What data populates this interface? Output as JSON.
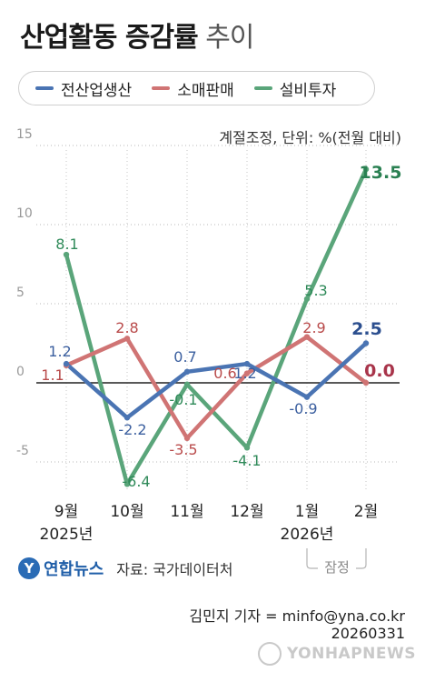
{
  "title": {
    "bold": "산업활동 증감률",
    "light": "추이"
  },
  "legend": [
    {
      "label": "전산업생산",
      "color": "#4a74b3"
    },
    {
      "label": "소매판매",
      "color": "#d07474"
    },
    {
      "label": "설비투자",
      "color": "#5aa57a"
    }
  ],
  "unit_note": "계절조정, 단위: %(전월 대비)",
  "chart_data": {
    "type": "line",
    "categories": [
      "9월",
      "10월",
      "11월",
      "12월",
      "1월",
      "2월"
    ],
    "year_labels": [
      "2025년",
      "2026년"
    ],
    "provisional_label": "잠정",
    "y_ticks": [
      "15",
      "10",
      "5",
      "0",
      "-5"
    ],
    "ylim": [
      -8.5,
      15
    ],
    "series": [
      {
        "name": "전산업생산",
        "color": "#4a74b3",
        "values": [
          1.2,
          -2.2,
          0.7,
          1.2,
          -0.9,
          2.5
        ],
        "labels": [
          "1.2",
          "-2.2",
          "0.7",
          "1.2",
          "-0.9",
          "2.5"
        ]
      },
      {
        "name": "소매판매",
        "color": "#d07474",
        "values": [
          1.1,
          2.8,
          -3.5,
          0.6,
          2.9,
          0.0
        ],
        "labels": [
          "1.1",
          "2.8",
          "-3.5",
          "0.6",
          "2.9",
          "0.0"
        ]
      },
      {
        "name": "설비투자",
        "color": "#5aa57a",
        "values": [
          8.1,
          -6.4,
          -0.1,
          -4.1,
          5.3,
          13.5
        ],
        "labels": [
          "8.1",
          "-6.4",
          "-0.1",
          "-4.1",
          "5.3",
          "13.5"
        ]
      }
    ]
  },
  "source": {
    "logo_glyph": "Y",
    "logo_text": "연합뉴스",
    "text": "자료: 국가데이터처"
  },
  "reporter": "김민지 기자 = minfo@yna.co.kr",
  "date": "20260331",
  "watermark": "YONHAPNEWS"
}
